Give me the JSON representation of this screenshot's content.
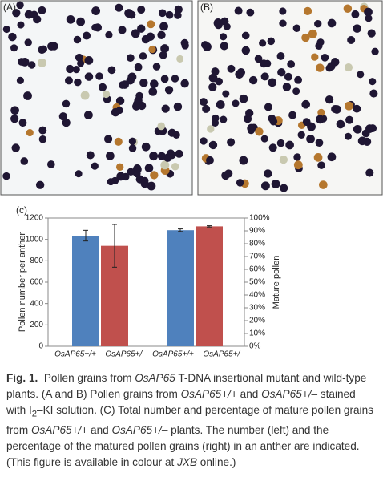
{
  "panels": [
    {
      "label": "(A)"
    },
    {
      "label": "(B)"
    }
  ],
  "chart_data": {
    "type": "bar",
    "panel_label": "(c)",
    "categories": [
      "OsAP65+/+",
      "OsAP65+/-",
      "OsAP65+/+",
      "OsAP65+/-"
    ],
    "colors": [
      "#4f81bd",
      "#c0504d",
      "#4f81bd",
      "#c0504d"
    ],
    "series": [
      {
        "axis": "y",
        "values": [
          1035,
          940,
          null,
          null
        ],
        "errors": [
          50,
          200,
          null,
          null
        ]
      },
      {
        "axis": "y2",
        "values": [
          null,
          null,
          90.5,
          93.5
        ],
        "errors": [
          null,
          null,
          1,
          0.5
        ]
      }
    ],
    "ylabel": "Pollen number per anther",
    "y2label": "Mature pollen",
    "ylim": [
      0,
      1200
    ],
    "yticks": [
      0,
      200,
      400,
      600,
      800,
      1000,
      1200
    ],
    "y2lim": [
      0,
      100
    ],
    "y2ticks": [
      {
        "value": 0,
        "label": "0%"
      },
      {
        "value": 10,
        "label": "10%"
      },
      {
        "value": 20,
        "label": "20%"
      },
      {
        "value": 30,
        "label": "30%"
      },
      {
        "value": 40,
        "label": "40%"
      },
      {
        "value": 50,
        "label": "50%"
      },
      {
        "value": 60,
        "label": "60%"
      },
      {
        "value": 70,
        "label": "70%"
      },
      {
        "value": 80,
        "label": "80%"
      },
      {
        "value": 90,
        "label": "90%"
      },
      {
        "value": 100,
        "label": "100%"
      }
    ]
  },
  "caption": {
    "label": "Fig. 1.",
    "parts": [
      "Pollen grains from ",
      "OsAP65",
      " T-DNA insertional mutant and wild-type plants. (A and B) Pollen grains from ",
      "OsAP65+/+",
      " and ",
      "OsAP65+/–",
      " stained with I",
      "2",
      "–KI solution. (C) Total number and percentage of mature pollen grains from ",
      "OsAP65+/+",
      " and ",
      "OsAP65+/–",
      " plants. The number (left) and the percentage of the matured pollen grains (right) in an anther are indicated. (This figure is available in colour at ",
      "JXB",
      " online.)"
    ]
  }
}
